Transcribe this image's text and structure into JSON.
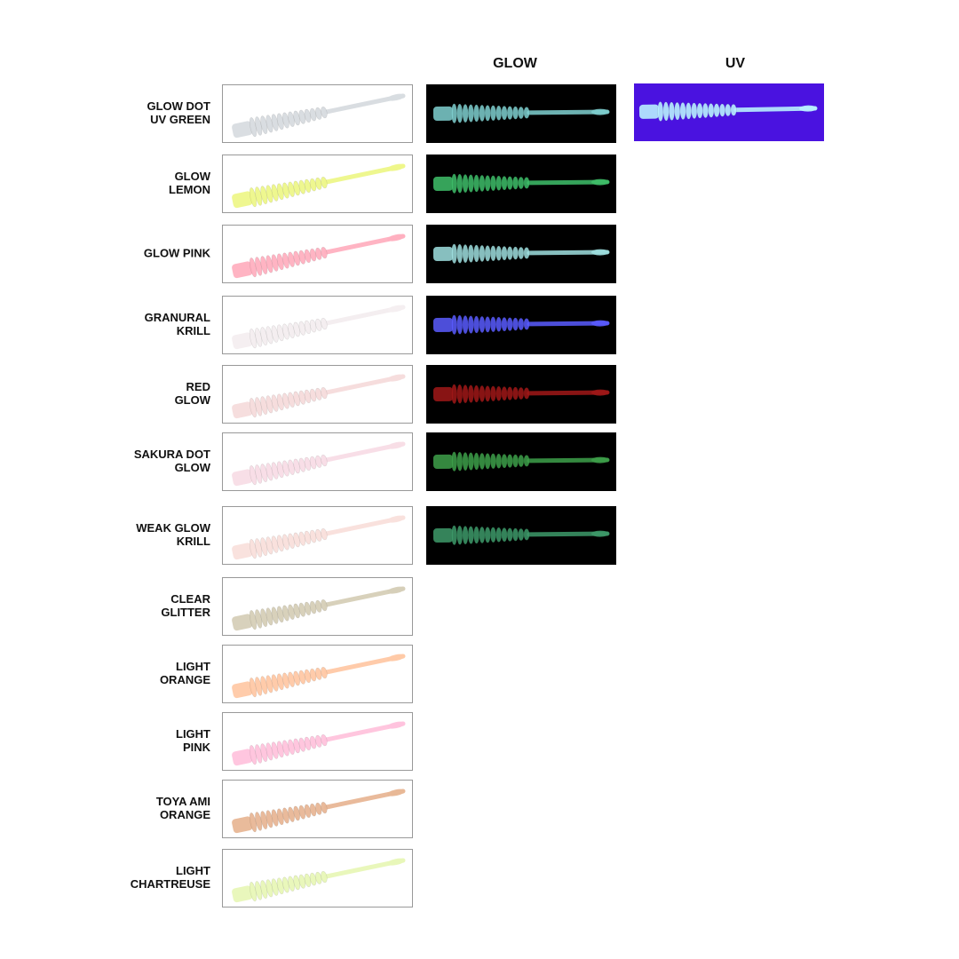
{
  "headers": {
    "glow": "GLOW",
    "uv": "UV"
  },
  "rows": [
    {
      "label": [
        "GLOW DOT",
        "UV GREEN"
      ]
    },
    {
      "label": [
        "GLOW",
        "LEMON"
      ]
    },
    {
      "label": [
        "GLOW PINK"
      ]
    },
    {
      "label": [
        "GRANURAL",
        "KRILL"
      ]
    },
    {
      "label": [
        "RED",
        "GLOW"
      ]
    },
    {
      "label": [
        "SAKURA DOT",
        "GLOW"
      ]
    },
    {
      "label": [
        "WEAK GLOW",
        "KRILL"
      ]
    },
    {
      "label": [
        "CLEAR",
        "GLITTER"
      ]
    },
    {
      "label": [
        "LIGHT",
        "ORANGE"
      ]
    },
    {
      "label": [
        "LIGHT",
        "PINK"
      ]
    },
    {
      "label": [
        "TOYA AMI",
        "ORANGE"
      ]
    },
    {
      "label": [
        "LIGHT",
        "CHARTREUSE"
      ]
    }
  ]
}
